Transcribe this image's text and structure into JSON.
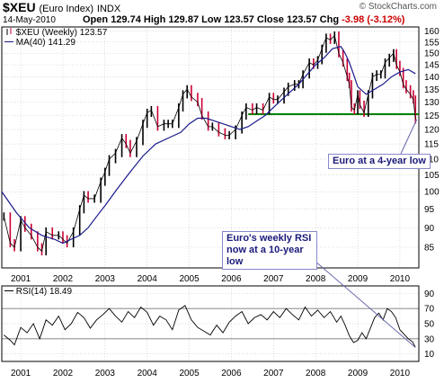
{
  "header": {
    "symbol": "$XEU",
    "name": "(Euro Index)",
    "exchange": "INDX",
    "date": "14-May-2010",
    "open_label": "Open",
    "open": "129.74",
    "high_label": "High",
    "high": "129.87",
    "low_label": "Low",
    "low": "123.57",
    "close_label": "Close",
    "close": "123.57",
    "chg_label": "Chg",
    "chg": "-3.98 (-3.12%)",
    "copyright": "© StockCharts.com"
  },
  "colors": {
    "price_up": "#000000",
    "price_down": "#cc0033",
    "ma": "#1a1a8c",
    "support": "#008000",
    "rsi": "#000000",
    "grid": "#bbbbbb",
    "annotation_line": "#6666aa"
  },
  "chart_data": [
    {
      "type": "line",
      "panel": "price",
      "legend": [
        {
          "name": "$XEU (Weekly) 123.57",
          "swatch": "up-down-bars"
        },
        {
          "name": "MA(40) 141.29",
          "swatch": "line"
        }
      ],
      "x_unit": "year",
      "xlim": [
        2000.55,
        2010.45
      ],
      "ylim": [
        80,
        162
      ],
      "y_scale": "log",
      "yticks": [
        85,
        90,
        95,
        100,
        105,
        110,
        115,
        120,
        125,
        130,
        135,
        140,
        145,
        150,
        155,
        160
      ],
      "xtick_labels": [
        "2001",
        "2002",
        "2003",
        "2004",
        "2005",
        "2006",
        "2007",
        "2008",
        "2009",
        "2010"
      ],
      "grid": true,
      "series": [
        {
          "name": "$XEU (Weekly) 123.57",
          "style": "weekly-bars",
          "x": [
            2000.6,
            2000.75,
            2000.85,
            2001.0,
            2001.1,
            2001.25,
            2001.4,
            2001.5,
            2001.6,
            2001.75,
            2001.9,
            2002.0,
            2002.1,
            2002.25,
            2002.4,
            2002.5,
            2002.6,
            2002.75,
            2002.9,
            2003.0,
            2003.1,
            2003.25,
            2003.4,
            2003.5,
            2003.6,
            2003.75,
            2003.9,
            2004.0,
            2004.1,
            2004.25,
            2004.4,
            2004.5,
            2004.6,
            2004.75,
            2004.85,
            2004.95,
            2005.05,
            2005.2,
            2005.3,
            2005.45,
            2005.55,
            2005.7,
            2005.85,
            2005.95,
            2006.1,
            2006.25,
            2006.35,
            2006.5,
            2006.6,
            2006.75,
            2006.9,
            2007.0,
            2007.1,
            2007.25,
            2007.35,
            2007.5,
            2007.6,
            2007.7,
            2007.85,
            2007.95,
            2008.05,
            2008.15,
            2008.25,
            2008.35,
            2008.45,
            2008.55,
            2008.65,
            2008.75,
            2008.8,
            2008.85,
            2008.92,
            2009.0,
            2009.05,
            2009.15,
            2009.25,
            2009.35,
            2009.45,
            2009.55,
            2009.65,
            2009.75,
            2009.85,
            2009.92,
            2010.0,
            2010.08,
            2010.15,
            2010.25,
            2010.32,
            2010.37
          ],
          "values": [
            93,
            86,
            85,
            92,
            90,
            88,
            85,
            84,
            89,
            88,
            88,
            87,
            86,
            89,
            95,
            99,
            98,
            98,
            103,
            106,
            110,
            112,
            117,
            115,
            112,
            116,
            122,
            126,
            127,
            121,
            122,
            122,
            122,
            128,
            133,
            135,
            132,
            130,
            125,
            121,
            121,
            119,
            118,
            118,
            120,
            125,
            128,
            127,
            128,
            127,
            132,
            131,
            131,
            134,
            136,
            137,
            137,
            141,
            146,
            145,
            147,
            152,
            157,
            156,
            158,
            150,
            146,
            140,
            137,
            128,
            127,
            133,
            129,
            126,
            133,
            140,
            141,
            141,
            146,
            148,
            150,
            145,
            142,
            137,
            135,
            133,
            131,
            123.57
          ]
        },
        {
          "name": "MA(40) 141.29",
          "style": "line",
          "x": [
            2000.55,
            2000.9,
            2001.2,
            2001.5,
            2001.8,
            2002.0,
            2002.2,
            2002.4,
            2002.6,
            2002.8,
            2003.0,
            2003.3,
            2003.6,
            2003.9,
            2004.2,
            2004.5,
            2004.8,
            2005.0,
            2005.2,
            2005.4,
            2005.6,
            2005.8,
            2006.0,
            2006.2,
            2006.4,
            2006.6,
            2006.8,
            2007.0,
            2007.2,
            2007.4,
            2007.6,
            2007.8,
            2008.0,
            2008.2,
            2008.4,
            2008.6,
            2008.7,
            2008.8,
            2008.9,
            2009.0,
            2009.2,
            2009.4,
            2009.6,
            2009.8,
            2010.0,
            2010.2,
            2010.37
          ],
          "values": [
            100,
            94,
            90,
            88,
            87,
            86,
            87,
            88,
            90,
            93,
            96,
            101,
            106,
            111,
            115,
            117,
            119,
            122,
            124,
            124,
            123,
            122,
            121,
            120,
            121,
            123,
            125,
            128,
            131,
            134,
            137,
            141,
            145,
            148,
            152,
            153,
            150,
            146,
            141,
            136,
            133,
            135,
            137,
            140,
            142,
            143,
            141.29
          ]
        }
      ],
      "reference_line": {
        "value": 125.5,
        "x_from": 2006.4,
        "x_to": 2010.45
      },
      "annotations": [
        {
          "text": "Euro at a 4-year low",
          "points_to_x": 2010.4,
          "points_to_y": 123.57
        }
      ]
    },
    {
      "type": "line",
      "panel": "rsi",
      "legend": [
        {
          "name": "RSI(14) 18.49"
        }
      ],
      "x_unit": "year",
      "xlim": [
        2000.55,
        2010.45
      ],
      "ylim": [
        0,
        100
      ],
      "yticks": [
        10,
        30,
        50,
        70,
        90
      ],
      "reference_levels": [
        30,
        70
      ],
      "xtick_labels": [
        "2001",
        "2002",
        "2003",
        "2004",
        "2005",
        "2006",
        "2007",
        "2008",
        "2009",
        "2010"
      ],
      "grid": true,
      "series": [
        {
          "name": "RSI(14) 18.49",
          "x": [
            2000.6,
            2000.75,
            2000.85,
            2001.0,
            2001.15,
            2001.3,
            2001.45,
            2001.6,
            2001.75,
            2001.9,
            2002.05,
            2002.2,
            2002.35,
            2002.5,
            2002.65,
            2002.8,
            2002.95,
            2003.1,
            2003.25,
            2003.4,
            2003.55,
            2003.7,
            2003.85,
            2004.0,
            2004.15,
            2004.3,
            2004.45,
            2004.6,
            2004.75,
            2004.9,
            2005.05,
            2005.2,
            2005.35,
            2005.5,
            2005.65,
            2005.8,
            2005.95,
            2006.1,
            2006.25,
            2006.4,
            2006.55,
            2006.7,
            2006.85,
            2007.0,
            2007.15,
            2007.3,
            2007.45,
            2007.6,
            2007.75,
            2007.9,
            2008.05,
            2008.2,
            2008.35,
            2008.5,
            2008.6,
            2008.7,
            2008.8,
            2008.9,
            2009.0,
            2009.1,
            2009.2,
            2009.3,
            2009.4,
            2009.5,
            2009.6,
            2009.7,
            2009.8,
            2009.9,
            2010.0,
            2010.1,
            2010.2,
            2010.3,
            2010.37
          ],
          "values": [
            35,
            28,
            22,
            45,
            38,
            50,
            30,
            55,
            48,
            60,
            42,
            50,
            65,
            58,
            44,
            55,
            62,
            70,
            60,
            52,
            66,
            58,
            72,
            65,
            48,
            60,
            55,
            42,
            68,
            74,
            55,
            45,
            40,
            35,
            48,
            38,
            52,
            60,
            66,
            50,
            58,
            62,
            55,
            66,
            58,
            70,
            62,
            55,
            72,
            60,
            68,
            58,
            66,
            52,
            60,
            48,
            34,
            25,
            28,
            38,
            30,
            44,
            58,
            64,
            55,
            70,
            66,
            58,
            42,
            36,
            30,
            26,
            18.49
          ]
        }
      ],
      "annotations": [
        {
          "text": "Euro's weekly RSI now at a 10-year low",
          "points_to_x": 2010.37,
          "points_to_y": 18.49
        }
      ]
    }
  ]
}
